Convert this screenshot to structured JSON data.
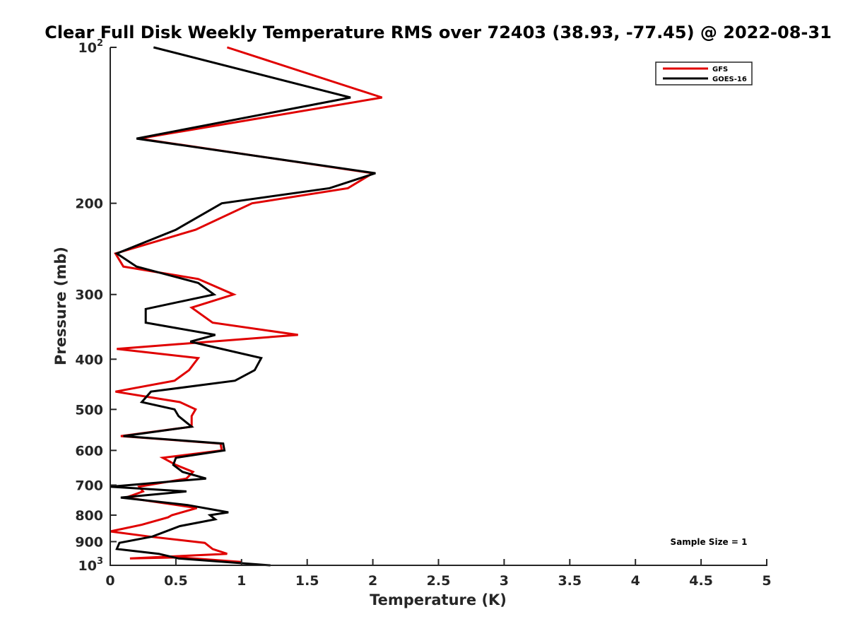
{
  "chart_data": {
    "type": "line",
    "title": "Clear Full Disk Weekly Temperature RMS over 72403 (38.93, -77.45) @ 2022-08-31",
    "xlabel": "Temperature (K)",
    "ylabel": "Pressure (mb)",
    "xlim": [
      0,
      5
    ],
    "ylim": [
      100,
      1000
    ],
    "y_scale": "log",
    "y_reversed": true,
    "xticks": [
      0,
      0.5,
      1,
      1.5,
      2,
      2.5,
      3,
      3.5,
      4,
      4.5,
      5
    ],
    "xtick_labels": [
      "0",
      "0.5",
      "1",
      "1.5",
      "2",
      "2.5",
      "3",
      "3.5",
      "4",
      "4.5",
      "5"
    ],
    "yticks": [
      100,
      200,
      300,
      400,
      500,
      600,
      700,
      800,
      900,
      1000
    ],
    "ytick_labels": [
      {
        "base": "10",
        "sup": "2"
      },
      {
        "base": "200",
        "sup": ""
      },
      {
        "base": "300",
        "sup": ""
      },
      {
        "base": "400",
        "sup": ""
      },
      {
        "base": "500",
        "sup": ""
      },
      {
        "base": "600",
        "sup": ""
      },
      {
        "base": "700",
        "sup": ""
      },
      {
        "base": "800",
        "sup": ""
      },
      {
        "base": "900",
        "sup": ""
      },
      {
        "base": "10",
        "sup": "3"
      }
    ],
    "grid": false,
    "legend_position": "top-right",
    "annotation": "Sample Size = 1",
    "series": [
      {
        "name": "GFS",
        "color": "#e00000",
        "points": [
          [
            0.89,
            100
          ],
          [
            2.07,
            125
          ],
          [
            0.22,
            150
          ],
          [
            2.0,
            175
          ],
          [
            1.81,
            187
          ],
          [
            1.08,
            200
          ],
          [
            0.65,
            225
          ],
          [
            0.04,
            250
          ],
          [
            0.1,
            265
          ],
          [
            0.67,
            280
          ],
          [
            0.94,
            300
          ],
          [
            0.62,
            318
          ],
          [
            0.78,
            340
          ],
          [
            1.43,
            359
          ],
          [
            0.05,
            382
          ],
          [
            0.67,
            398
          ],
          [
            0.6,
            420
          ],
          [
            0.49,
            440
          ],
          [
            0.04,
            462
          ],
          [
            0.53,
            484
          ],
          [
            0.65,
            500
          ],
          [
            0.62,
            515
          ],
          [
            0.62,
            540
          ],
          [
            0.08,
            563
          ],
          [
            0.84,
            582
          ],
          [
            0.85,
            600
          ],
          [
            0.4,
            620
          ],
          [
            0.5,
            640
          ],
          [
            0.63,
            660
          ],
          [
            0.58,
            680
          ],
          [
            0.22,
            705
          ],
          [
            0.25,
            720
          ],
          [
            0.12,
            740
          ],
          [
            0.66,
            775
          ],
          [
            0.47,
            800
          ],
          [
            0.44,
            808
          ],
          [
            0.24,
            835
          ],
          [
            0.0,
            860
          ],
          [
            0.3,
            880
          ],
          [
            0.72,
            905
          ],
          [
            0.78,
            930
          ],
          [
            0.89,
            950
          ],
          [
            0.15,
            970
          ],
          [
            0.52,
            965
          ],
          [
            1.0,
            985
          ]
        ]
      },
      {
        "name": "GOES-16",
        "color": "#000000",
        "points": [
          [
            0.33,
            100
          ],
          [
            1.83,
            125
          ],
          [
            0.2,
            150
          ],
          [
            2.02,
            175
          ],
          [
            1.67,
            187
          ],
          [
            0.85,
            200
          ],
          [
            0.5,
            225
          ],
          [
            0.05,
            250
          ],
          [
            0.2,
            265
          ],
          [
            0.67,
            285
          ],
          [
            0.79,
            300
          ],
          [
            0.27,
            320
          ],
          [
            0.27,
            340
          ],
          [
            0.8,
            359
          ],
          [
            0.61,
            370
          ],
          [
            1.15,
            398
          ],
          [
            1.1,
            420
          ],
          [
            0.95,
            440
          ],
          [
            0.31,
            462
          ],
          [
            0.24,
            484
          ],
          [
            0.49,
            500
          ],
          [
            0.52,
            515
          ],
          [
            0.62,
            540
          ],
          [
            0.1,
            563
          ],
          [
            0.86,
            582
          ],
          [
            0.87,
            600
          ],
          [
            0.5,
            620
          ],
          [
            0.48,
            640
          ],
          [
            0.55,
            660
          ],
          [
            0.73,
            680
          ],
          [
            0.0,
            705
          ],
          [
            0.58,
            720
          ],
          [
            0.08,
            740
          ],
          [
            0.59,
            765
          ],
          [
            0.9,
            790
          ],
          [
            0.76,
            800
          ],
          [
            0.8,
            815
          ],
          [
            0.53,
            840
          ],
          [
            0.32,
            880
          ],
          [
            0.07,
            905
          ],
          [
            0.05,
            930
          ],
          [
            0.37,
            950
          ],
          [
            0.52,
            970
          ],
          [
            1.22,
            1000
          ]
        ]
      }
    ]
  }
}
